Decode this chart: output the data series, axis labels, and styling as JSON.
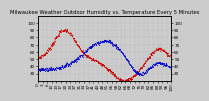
{
  "title": "Milwaukee Weather Outdoor Humidity vs. Temperature Every 5 Minutes",
  "bg_color": "#cccccc",
  "plot_bg_color": "#cccccc",
  "line1_color": "#cc0000",
  "line2_color": "#0000cc",
  "linewidth": 0.6,
  "markersize": 1.5,
  "ylim_left": [
    20,
    110
  ],
  "ylim_right": [
    20,
    110
  ],
  "title_fontsize": 3.8,
  "tick_fontsize": 3.0,
  "grid_color": "#aaaaaa",
  "grid_linestyle": ":",
  "grid_linewidth": 0.3,
  "spine_linewidth": 0.5,
  "n_points": 288,
  "right_yticks": [
    30,
    40,
    50,
    60,
    70,
    80,
    90,
    100
  ],
  "left_yticks": [
    30,
    40,
    50,
    60,
    70,
    80,
    90,
    100
  ]
}
